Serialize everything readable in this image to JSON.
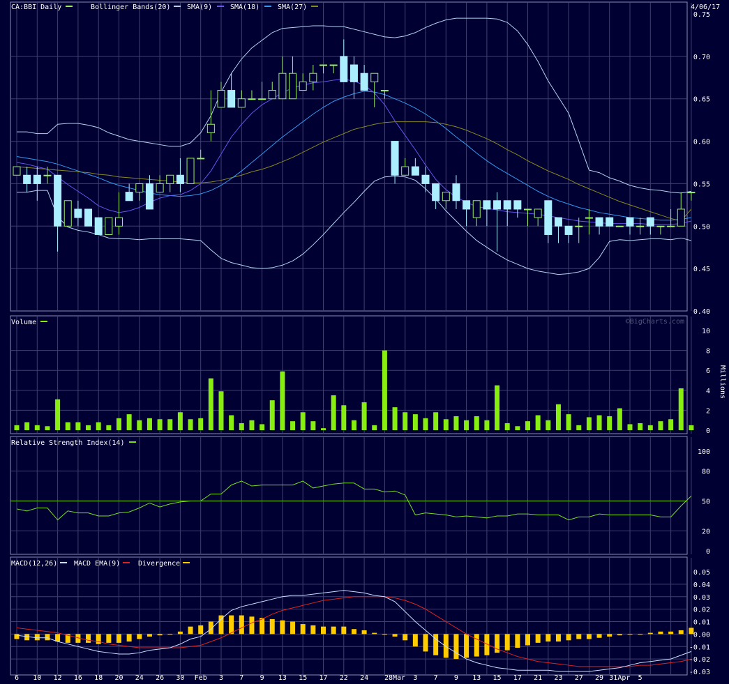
{
  "header": {
    "symbol_label": "CA:BBI Daily",
    "date": "4/06/17",
    "watermark": "©BigCharts.com"
  },
  "legend": {
    "bollinger": "Bollinger Bands(20)",
    "sma9": "SMA(9)",
    "sma18": "SMA(18)",
    "sma27": "SMA(27)",
    "volume": "Volume",
    "rsi": "Relative Strength Index(14)",
    "macd": "MACD(12,26)",
    "macd_ema": "MACD EMA(9)",
    "divergence": "Divergence",
    "volume_unit": "Millions"
  },
  "colors": {
    "background": "#000033",
    "grid": "#404070",
    "frame": "#8c8cb4",
    "up_candle": "#99ee66",
    "down_candle": "#aaeeff",
    "bollinger": "#b4d2f0",
    "sma9": "#6655ee",
    "sma18": "#3399ee",
    "sma27": "#888822",
    "volume": "#88ee11",
    "rsi": "#77dd22",
    "macd": "#c8e0ff",
    "macd_ema": "#dd2222",
    "divergence": "#ffcc00"
  },
  "chart_data": [
    {
      "type": "candlestick",
      "name": "price",
      "ylim": [
        0.4,
        0.75
      ],
      "y_ticks": [
        "0.40",
        "0.45",
        "0.50",
        "0.55",
        "0.60",
        "0.65",
        "0.70",
        "0.75"
      ],
      "x_labels": [
        "6",
        "10",
        "12",
        "16",
        "18",
        "20",
        "24",
        "26",
        "30",
        "Feb",
        "3",
        "7",
        "9",
        "13",
        "15",
        "17",
        "22",
        "24",
        "28Mar",
        "3",
        "7",
        "9",
        "13",
        "15",
        "17",
        "21",
        "23",
        "27",
        "29",
        "31Apr",
        "5"
      ],
      "ohlc": [
        [
          0.56,
          0.57,
          0.56,
          0.57
        ],
        [
          0.56,
          0.57,
          0.54,
          0.55
        ],
        [
          0.56,
          0.57,
          0.53,
          0.55
        ],
        [
          0.56,
          0.57,
          0.55,
          0.56
        ],
        [
          0.56,
          0.56,
          0.47,
          0.5
        ],
        [
          0.5,
          0.53,
          0.5,
          0.53
        ],
        [
          0.52,
          0.53,
          0.5,
          0.51
        ],
        [
          0.52,
          0.52,
          0.5,
          0.5
        ],
        [
          0.51,
          0.51,
          0.49,
          0.49
        ],
        [
          0.49,
          0.51,
          0.49,
          0.51
        ],
        [
          0.5,
          0.54,
          0.49,
          0.51
        ],
        [
          0.54,
          0.55,
          0.53,
          0.53
        ],
        [
          0.54,
          0.55,
          0.53,
          0.55
        ],
        [
          0.55,
          0.56,
          0.52,
          0.52
        ],
        [
          0.54,
          0.56,
          0.54,
          0.55
        ],
        [
          0.55,
          0.56,
          0.54,
          0.56
        ],
        [
          0.56,
          0.58,
          0.54,
          0.55
        ],
        [
          0.55,
          0.58,
          0.55,
          0.58
        ],
        [
          0.58,
          0.59,
          0.58,
          0.58
        ],
        [
          0.61,
          0.66,
          0.6,
          0.62
        ],
        [
          0.64,
          0.67,
          0.64,
          0.66
        ],
        [
          0.66,
          0.68,
          0.64,
          0.64
        ],
        [
          0.64,
          0.66,
          0.64,
          0.65
        ],
        [
          0.65,
          0.66,
          0.65,
          0.65
        ],
        [
          0.65,
          0.67,
          0.65,
          0.65
        ],
        [
          0.65,
          0.67,
          0.65,
          0.66
        ],
        [
          0.65,
          0.7,
          0.65,
          0.68
        ],
        [
          0.65,
          0.7,
          0.65,
          0.68
        ],
        [
          0.66,
          0.68,
          0.66,
          0.67
        ],
        [
          0.67,
          0.69,
          0.66,
          0.68
        ],
        [
          0.69,
          0.69,
          0.68,
          0.69
        ],
        [
          0.69,
          0.69,
          0.68,
          0.69
        ],
        [
          0.7,
          0.72,
          0.67,
          0.67
        ],
        [
          0.69,
          0.7,
          0.65,
          0.67
        ],
        [
          0.68,
          0.69,
          0.66,
          0.66
        ],
        [
          0.67,
          0.68,
          0.64,
          0.68
        ],
        [
          0.66,
          0.66,
          0.65,
          0.66
        ],
        [
          0.6,
          0.6,
          0.55,
          0.56
        ],
        [
          0.56,
          0.58,
          0.56,
          0.57
        ],
        [
          0.57,
          0.58,
          0.56,
          0.56
        ],
        [
          0.56,
          0.57,
          0.54,
          0.55
        ],
        [
          0.55,
          0.55,
          0.52,
          0.53
        ],
        [
          0.53,
          0.54,
          0.52,
          0.54
        ],
        [
          0.55,
          0.56,
          0.52,
          0.53
        ],
        [
          0.53,
          0.53,
          0.5,
          0.52
        ],
        [
          0.51,
          0.53,
          0.5,
          0.53
        ],
        [
          0.53,
          0.53,
          0.5,
          0.52
        ],
        [
          0.53,
          0.54,
          0.47,
          0.52
        ],
        [
          0.53,
          0.53,
          0.5,
          0.52
        ],
        [
          0.53,
          0.53,
          0.51,
          0.52
        ],
        [
          0.52,
          0.52,
          0.5,
          0.52
        ],
        [
          0.51,
          0.52,
          0.5,
          0.52
        ],
        [
          0.53,
          0.53,
          0.48,
          0.49
        ],
        [
          0.51,
          0.51,
          0.48,
          0.5
        ],
        [
          0.5,
          0.5,
          0.48,
          0.49
        ],
        [
          0.5,
          0.51,
          0.48,
          0.5
        ],
        [
          0.51,
          0.52,
          0.49,
          0.51
        ],
        [
          0.51,
          0.51,
          0.49,
          0.5
        ],
        [
          0.51,
          0.51,
          0.5,
          0.5
        ],
        [
          0.5,
          0.5,
          0.5,
          0.5
        ],
        [
          0.51,
          0.51,
          0.49,
          0.5
        ],
        [
          0.5,
          0.51,
          0.49,
          0.5
        ],
        [
          0.51,
          0.51,
          0.49,
          0.5
        ],
        [
          0.5,
          0.5,
          0.49,
          0.5
        ],
        [
          0.5,
          0.52,
          0.5,
          0.5
        ],
        [
          0.5,
          0.54,
          0.5,
          0.52
        ],
        [
          0.54,
          0.54,
          0.53,
          0.54
        ]
      ],
      "sma9": [
        0.575,
        0.573,
        0.57,
        0.567,
        0.558,
        0.549,
        0.541,
        0.533,
        0.524,
        0.519,
        0.516,
        0.518,
        0.522,
        0.528,
        0.533,
        0.536,
        0.537,
        0.542,
        0.55,
        0.565,
        0.585,
        0.605,
        0.62,
        0.633,
        0.643,
        0.65,
        0.657,
        0.663,
        0.666,
        0.669,
        0.67,
        0.672,
        0.673,
        0.671,
        0.666,
        0.657,
        0.643,
        0.624,
        0.607,
        0.59,
        0.572,
        0.555,
        0.543,
        0.534,
        0.528,
        0.523,
        0.521,
        0.519,
        0.517,
        0.516,
        0.515,
        0.514,
        0.512,
        0.51,
        0.508,
        0.506,
        0.505,
        0.504,
        0.503,
        0.503,
        0.503,
        0.503,
        0.502,
        0.502,
        0.502,
        0.503,
        0.506
      ],
      "sma18": [
        0.582,
        0.58,
        0.578,
        0.576,
        0.573,
        0.569,
        0.565,
        0.561,
        0.557,
        0.552,
        0.548,
        0.545,
        0.542,
        0.539,
        0.537,
        0.536,
        0.535,
        0.536,
        0.538,
        0.542,
        0.548,
        0.556,
        0.565,
        0.575,
        0.585,
        0.595,
        0.605,
        0.614,
        0.623,
        0.632,
        0.64,
        0.647,
        0.652,
        0.656,
        0.659,
        0.658,
        0.655,
        0.65,
        0.645,
        0.639,
        0.632,
        0.624,
        0.615,
        0.605,
        0.596,
        0.586,
        0.577,
        0.569,
        0.562,
        0.555,
        0.548,
        0.541,
        0.535,
        0.53,
        0.526,
        0.522,
        0.519,
        0.516,
        0.514,
        0.512,
        0.51,
        0.509,
        0.508,
        0.507,
        0.507,
        0.508,
        0.51
      ],
      "sma27": [
        0.57,
        0.569,
        0.568,
        0.567,
        0.566,
        0.565,
        0.564,
        0.563,
        0.561,
        0.56,
        0.558,
        0.557,
        0.556,
        0.555,
        0.554,
        0.553,
        0.552,
        0.551,
        0.551,
        0.552,
        0.554,
        0.557,
        0.56,
        0.564,
        0.567,
        0.571,
        0.576,
        0.581,
        0.587,
        0.593,
        0.599,
        0.604,
        0.609,
        0.614,
        0.617,
        0.62,
        0.622,
        0.623,
        0.623,
        0.623,
        0.623,
        0.622,
        0.62,
        0.617,
        0.613,
        0.608,
        0.603,
        0.597,
        0.59,
        0.584,
        0.577,
        0.571,
        0.565,
        0.56,
        0.555,
        0.549,
        0.544,
        0.539,
        0.534,
        0.529,
        0.525,
        0.521,
        0.517,
        0.513,
        0.509,
        0.506,
        0.52
      ],
      "bb_upper": [
        0.611,
        0.611,
        0.609,
        0.609,
        0.62,
        0.621,
        0.621,
        0.619,
        0.616,
        0.61,
        0.606,
        0.602,
        0.6,
        0.598,
        0.596,
        0.594,
        0.594,
        0.598,
        0.61,
        0.63,
        0.658,
        0.68,
        0.697,
        0.71,
        0.719,
        0.728,
        0.733,
        0.734,
        0.735,
        0.736,
        0.736,
        0.735,
        0.735,
        0.732,
        0.729,
        0.726,
        0.723,
        0.722,
        0.724,
        0.728,
        0.734,
        0.739,
        0.743,
        0.745,
        0.745,
        0.745,
        0.745,
        0.744,
        0.74,
        0.73,
        0.714,
        0.694,
        0.671,
        0.652,
        0.633,
        0.6,
        0.566,
        0.563,
        0.557,
        0.553,
        0.548,
        0.545,
        0.543,
        0.542,
        0.54,
        0.539,
        0.541
      ],
      "bb_lower": [
        0.54,
        0.54,
        0.542,
        0.542,
        0.511,
        0.499,
        0.495,
        0.493,
        0.49,
        0.486,
        0.485,
        0.485,
        0.484,
        0.485,
        0.485,
        0.485,
        0.485,
        0.484,
        0.483,
        0.472,
        0.462,
        0.457,
        0.454,
        0.451,
        0.45,
        0.451,
        0.454,
        0.459,
        0.467,
        0.478,
        0.49,
        0.503,
        0.516,
        0.528,
        0.541,
        0.553,
        0.558,
        0.559,
        0.558,
        0.554,
        0.544,
        0.532,
        0.518,
        0.506,
        0.494,
        0.483,
        0.475,
        0.467,
        0.46,
        0.455,
        0.45,
        0.447,
        0.445,
        0.443,
        0.444,
        0.446,
        0.45,
        0.463,
        0.482,
        0.484,
        0.483,
        0.484,
        0.485,
        0.485,
        0.484,
        0.486,
        0.483
      ]
    },
    {
      "type": "bar",
      "name": "volume",
      "ylabel": "Millions",
      "ylim": [
        0,
        10
      ],
      "y_ticks": [
        "0",
        "2",
        "4",
        "6",
        "8",
        "10"
      ],
      "values": [
        0.5,
        0.8,
        0.5,
        0.4,
        3.1,
        0.8,
        0.8,
        0.5,
        0.8,
        0.5,
        1.2,
        1.6,
        1.0,
        1.2,
        1.1,
        1.1,
        1.8,
        1.1,
        1.2,
        5.2,
        3.9,
        1.5,
        0.7,
        1.0,
        0.6,
        3.0,
        5.9,
        0.9,
        1.8,
        0.9,
        0.2,
        3.5,
        2.5,
        1.0,
        2.8,
        0.5,
        8.0,
        2.3,
        1.8,
        1.6,
        1.2,
        1.8,
        1.1,
        1.4,
        1.0,
        1.4,
        1.0,
        4.5,
        0.7,
        0.4,
        0.9,
        1.5,
        1.0,
        2.6,
        1.6,
        0.5,
        1.3,
        1.5,
        1.4,
        2.2,
        0.6,
        0.7,
        0.5,
        0.9,
        1.1,
        4.2,
        0.5
      ]
    },
    {
      "type": "line",
      "name": "rsi",
      "ylim": [
        0,
        100
      ],
      "y_ticks": [
        "0",
        "20",
        "50",
        "80",
        "100"
      ],
      "reference_line": 50,
      "values": [
        42,
        40,
        43,
        43,
        31,
        40,
        38,
        38,
        35,
        35,
        38,
        39,
        43,
        48,
        44,
        47,
        49,
        50,
        50,
        57,
        57,
        66,
        70,
        65,
        66,
        66,
        66,
        66,
        70,
        63,
        65,
        67,
        68,
        68,
        62,
        62,
        59,
        60,
        56,
        36,
        38,
        37,
        36,
        34,
        35,
        34,
        33,
        35,
        35,
        37,
        37,
        36,
        36,
        36,
        31,
        34,
        34,
        37,
        36,
        36,
        36,
        36,
        36,
        34,
        34,
        45,
        55
      ]
    },
    {
      "type": "line",
      "name": "macd",
      "ylim": [
        -0.03,
        0.05
      ],
      "y_ticks": [
        "0.05",
        "0.04",
        "0.03",
        "0.02",
        "0.01",
        "0.00",
        "-0.01",
        "-0.02",
        "-0.03"
      ],
      "macd": [
        -0.001,
        -0.002,
        -0.003,
        -0.003,
        -0.006,
        -0.008,
        -0.01,
        -0.012,
        -0.014,
        -0.015,
        -0.016,
        -0.016,
        -0.015,
        -0.013,
        -0.012,
        -0.011,
        -0.008,
        -0.004,
        -0.002,
        0.004,
        0.012,
        0.019,
        0.022,
        0.024,
        0.026,
        0.028,
        0.03,
        0.031,
        0.031,
        0.032,
        0.033,
        0.034,
        0.035,
        0.034,
        0.033,
        0.031,
        0.03,
        0.026,
        0.018,
        0.01,
        0.003,
        -0.004,
        -0.01,
        -0.015,
        -0.02,
        -0.023,
        -0.025,
        -0.027,
        -0.028,
        -0.029,
        -0.029,
        -0.029,
        -0.029,
        -0.03,
        -0.03,
        -0.03,
        -0.03,
        -0.029,
        -0.028,
        -0.027,
        -0.025,
        -0.023,
        -0.022,
        -0.021,
        -0.02,
        -0.017,
        -0.014
      ],
      "macd_ema": [
        0.005,
        0.004,
        0.003,
        0.002,
        0.001,
        -0.001,
        -0.003,
        -0.005,
        -0.006,
        -0.008,
        -0.009,
        -0.01,
        -0.011,
        -0.011,
        -0.011,
        -0.011,
        -0.011,
        -0.01,
        -0.009,
        -0.006,
        -0.003,
        0.001,
        0.005,
        0.009,
        0.012,
        0.016,
        0.019,
        0.021,
        0.023,
        0.025,
        0.027,
        0.028,
        0.029,
        0.03,
        0.03,
        0.03,
        0.03,
        0.029,
        0.027,
        0.024,
        0.02,
        0.015,
        0.01,
        0.005,
        0.0,
        -0.004,
        -0.008,
        -0.012,
        -0.015,
        -0.018,
        -0.02,
        -0.022,
        -0.023,
        -0.024,
        -0.025,
        -0.026,
        -0.026,
        -0.026,
        -0.026,
        -0.026,
        -0.026,
        -0.025,
        -0.025,
        -0.024,
        -0.023,
        -0.022,
        -0.02
      ],
      "divergence": [
        -0.004,
        -0.005,
        -0.005,
        -0.005,
        -0.006,
        -0.007,
        -0.007,
        -0.007,
        -0.008,
        -0.007,
        -0.007,
        -0.006,
        -0.004,
        -0.002,
        -0.001,
        0.0,
        0.002,
        0.006,
        0.007,
        0.01,
        0.015,
        0.015,
        0.015,
        0.014,
        0.013,
        0.012,
        0.011,
        0.01,
        0.008,
        0.007,
        0.006,
        0.006,
        0.006,
        0.004,
        0.003,
        0.001,
        0.0,
        -0.002,
        -0.005,
        -0.01,
        -0.014,
        -0.017,
        -0.019,
        -0.02,
        -0.019,
        -0.018,
        -0.017,
        -0.015,
        -0.013,
        -0.011,
        -0.009,
        -0.007,
        -0.006,
        -0.006,
        -0.005,
        -0.004,
        -0.004,
        -0.003,
        -0.002,
        -0.001,
        0.0,
        0.0,
        0.001,
        0.002,
        0.002,
        0.003,
        0.005
      ]
    }
  ]
}
